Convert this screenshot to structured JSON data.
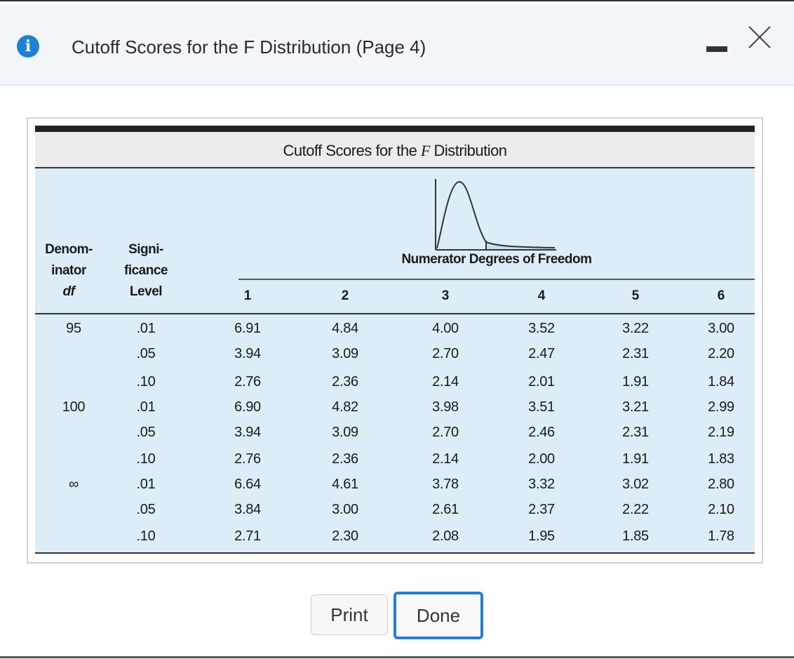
{
  "dialog": {
    "title": "Cutoff Scores for the F Distribution (Page 4)",
    "icon": "info-icon",
    "info_glyph": "i",
    "accent_color": "#1e7fd6"
  },
  "table": {
    "caption_prefix": "Cutoff Scores for the ",
    "caption_f": "F",
    "caption_suffix": " Distribution",
    "header_denom": [
      "Denom-",
      "inator",
      "df"
    ],
    "header_sig": [
      "Signi-",
      "ficance",
      "Level"
    ],
    "numerator_label": "Numerator Degrees of Freedom",
    "columns": [
      "1",
      "2",
      "3",
      "4",
      "5",
      "6"
    ],
    "rows": [
      {
        "df": "95",
        "sig": ".01",
        "values": [
          "6.91",
          "4.84",
          "4.00",
          "3.52",
          "3.22",
          "3.00"
        ]
      },
      {
        "df": "",
        "sig": ".05",
        "values": [
          "3.94",
          "3.09",
          "2.70",
          "2.47",
          "2.31",
          "2.20"
        ]
      },
      {
        "df": "",
        "sig": ".10",
        "values": [
          "2.76",
          "2.36",
          "2.14",
          "2.01",
          "1.91",
          "1.84"
        ]
      },
      {
        "df": "100",
        "sig": ".01",
        "values": [
          "6.90",
          "4.82",
          "3.98",
          "3.51",
          "3.21",
          "2.99"
        ]
      },
      {
        "df": "",
        "sig": ".05",
        "values": [
          "3.94",
          "3.09",
          "2.70",
          "2.46",
          "2.31",
          "2.19"
        ]
      },
      {
        "df": "",
        "sig": ".10",
        "values": [
          "2.76",
          "2.36",
          "2.14",
          "2.00",
          "1.91",
          "1.83"
        ]
      },
      {
        "df": "∞",
        "sig": ".01",
        "values": [
          "6.64",
          "4.61",
          "3.78",
          "3.32",
          "3.02",
          "2.80"
        ]
      },
      {
        "df": "",
        "sig": ".05",
        "values": [
          "3.84",
          "3.00",
          "2.61",
          "2.37",
          "2.22",
          "2.10"
        ]
      },
      {
        "df": "",
        "sig": ".10",
        "values": [
          "2.71",
          "2.30",
          "2.08",
          "1.95",
          "1.85",
          "1.78"
        ]
      }
    ]
  },
  "buttons": {
    "print_label": "Print",
    "done_label": "Done"
  }
}
